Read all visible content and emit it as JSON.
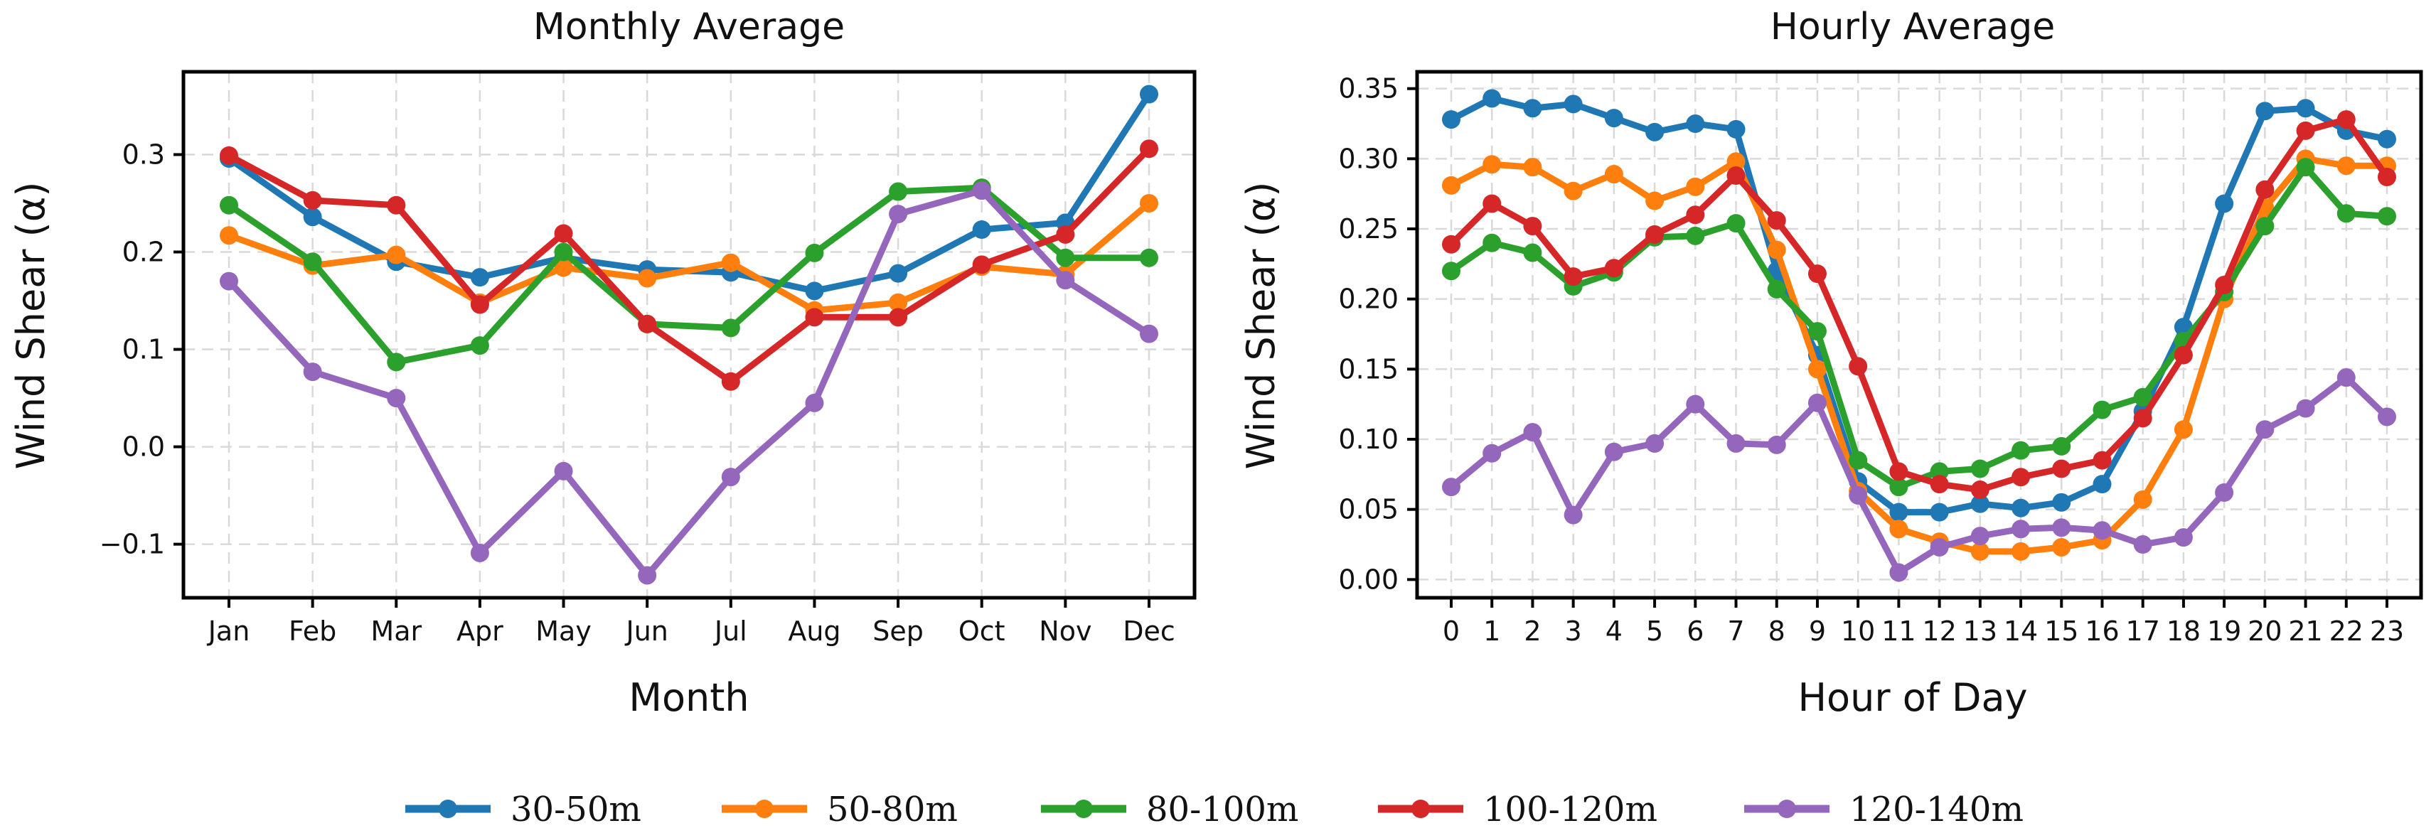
{
  "colors": {
    "30-50m": "#1f77b4",
    "50-80m": "#ff7f0e",
    "80-100m": "#2ca02c",
    "100-120m": "#d62728",
    "120-140m": "#9467bd"
  },
  "legend": {
    "items": [
      "30-50m",
      "50-80m",
      "80-100m",
      "100-120m",
      "120-140m"
    ]
  },
  "chart_data": [
    {
      "type": "line",
      "title": "Monthly Average",
      "xlabel": "Month",
      "ylabel": "Wind Shear (α)",
      "categories": [
        "Jan",
        "Feb",
        "Mar",
        "Apr",
        "May",
        "Jun",
        "Jul",
        "Aug",
        "Sep",
        "Oct",
        "Nov",
        "Dec"
      ],
      "ylim": [
        -0.155,
        0.385
      ],
      "yticks": [
        -0.1,
        0.0,
        0.1,
        0.2,
        0.3
      ],
      "ytick_labels": [
        "−0.1",
        "0.0",
        "0.1",
        "0.2",
        "0.3"
      ],
      "grid": true,
      "series": [
        {
          "name": "30-50m",
          "values": [
            0.296,
            0.236,
            0.19,
            0.174,
            0.194,
            0.182,
            0.179,
            0.16,
            0.178,
            0.223,
            0.23,
            0.362
          ]
        },
        {
          "name": "50-80m",
          "values": [
            0.217,
            0.186,
            0.197,
            0.148,
            0.184,
            0.173,
            0.189,
            0.14,
            0.148,
            0.185,
            0.177,
            0.25
          ]
        },
        {
          "name": "80-100m",
          "values": [
            0.248,
            0.19,
            0.087,
            0.104,
            0.2,
            0.126,
            0.122,
            0.199,
            0.262,
            0.266,
            0.194,
            0.194
          ]
        },
        {
          "name": "100-120m",
          "values": [
            0.299,
            0.253,
            0.248,
            0.146,
            0.219,
            0.126,
            0.067,
            0.133,
            0.133,
            0.187,
            0.218,
            0.306
          ]
        },
        {
          "name": "120-140m",
          "values": [
            0.17,
            0.077,
            0.05,
            -0.109,
            -0.025,
            -0.132,
            -0.031,
            0.045,
            0.239,
            0.263,
            0.171,
            0.116
          ]
        }
      ]
    },
    {
      "type": "line",
      "title": "Hourly Average",
      "xlabel": "Hour of Day",
      "ylabel": "Wind Shear (α)",
      "categories": [
        "0",
        "1",
        "2",
        "3",
        "4",
        "5",
        "6",
        "7",
        "8",
        "9",
        "10",
        "11",
        "12",
        "13",
        "14",
        "15",
        "16",
        "17",
        "18",
        "19",
        "20",
        "21",
        "22",
        "23"
      ],
      "ylim": [
        -0.013,
        0.362
      ],
      "yticks": [
        0.0,
        0.05,
        0.1,
        0.15,
        0.2,
        0.25,
        0.3,
        0.35
      ],
      "ytick_labels": [
        "0.00",
        "0.05",
        "0.10",
        "0.15",
        "0.20",
        "0.25",
        "0.30",
        "0.35"
      ],
      "grid": true,
      "series": [
        {
          "name": "30-50m",
          "values": [
            0.328,
            0.343,
            0.336,
            0.339,
            0.329,
            0.319,
            0.325,
            0.321,
            0.22,
            0.16,
            0.07,
            0.048,
            0.048,
            0.054,
            0.051,
            0.055,
            0.068,
            0.12,
            0.18,
            0.268,
            0.334,
            0.336,
            0.32,
            0.314
          ]
        },
        {
          "name": "50-80m",
          "values": [
            0.281,
            0.296,
            0.294,
            0.277,
            0.289,
            0.27,
            0.28,
            0.298,
            0.235,
            0.15,
            0.063,
            0.036,
            0.027,
            0.02,
            0.02,
            0.023,
            0.028,
            0.057,
            0.107,
            0.2,
            0.265,
            0.3,
            0.295,
            0.295
          ]
        },
        {
          "name": "80-100m",
          "values": [
            0.22,
            0.24,
            0.233,
            0.209,
            0.219,
            0.244,
            0.245,
            0.254,
            0.207,
            0.177,
            0.085,
            0.066,
            0.077,
            0.079,
            0.092,
            0.095,
            0.121,
            0.13,
            0.17,
            0.205,
            0.252,
            0.294,
            0.261,
            0.259
          ]
        },
        {
          "name": "100-120m",
          "values": [
            0.239,
            0.268,
            0.252,
            0.216,
            0.222,
            0.246,
            0.26,
            0.288,
            0.256,
            0.218,
            0.152,
            0.077,
            0.068,
            0.064,
            0.073,
            0.079,
            0.085,
            0.115,
            0.16,
            0.21,
            0.278,
            0.32,
            0.328,
            0.287
          ]
        },
        {
          "name": "120-140m",
          "values": [
            0.066,
            0.09,
            0.105,
            0.046,
            0.091,
            0.097,
            0.125,
            0.097,
            0.096,
            0.126,
            0.06,
            0.005,
            0.023,
            0.031,
            0.036,
            0.037,
            0.035,
            0.025,
            0.03,
            0.062,
            0.107,
            0.122,
            0.144,
            0.116
          ]
        }
      ]
    }
  ]
}
